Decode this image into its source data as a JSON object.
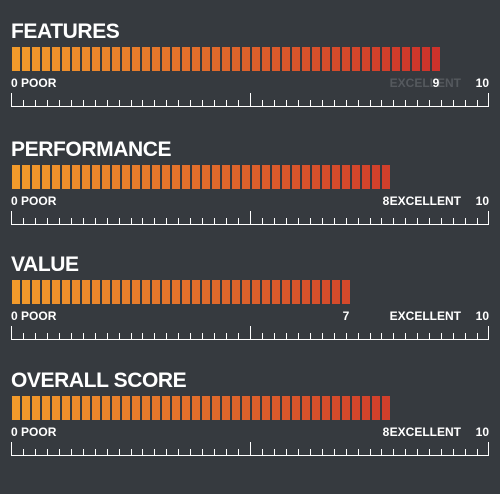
{
  "scale": {
    "min": 0,
    "max": 10,
    "min_label": "POOR",
    "max_label": "EXCELLENT"
  },
  "ratings": [
    {
      "title": "FEATURES",
      "score": 9,
      "max": 10
    },
    {
      "title": "PERFORMANCE",
      "score": 8,
      "max": 10
    },
    {
      "title": "VALUE",
      "score": 7,
      "max": 10
    },
    {
      "title": "OVERALL SCORE",
      "score": 8,
      "max": 10
    }
  ],
  "colors": {
    "background": "#363a3f",
    "bar_start": "#f29a2b",
    "bar_end": "#c8262b",
    "text": "#ffffff",
    "dimmed_text": "#55595e"
  }
}
